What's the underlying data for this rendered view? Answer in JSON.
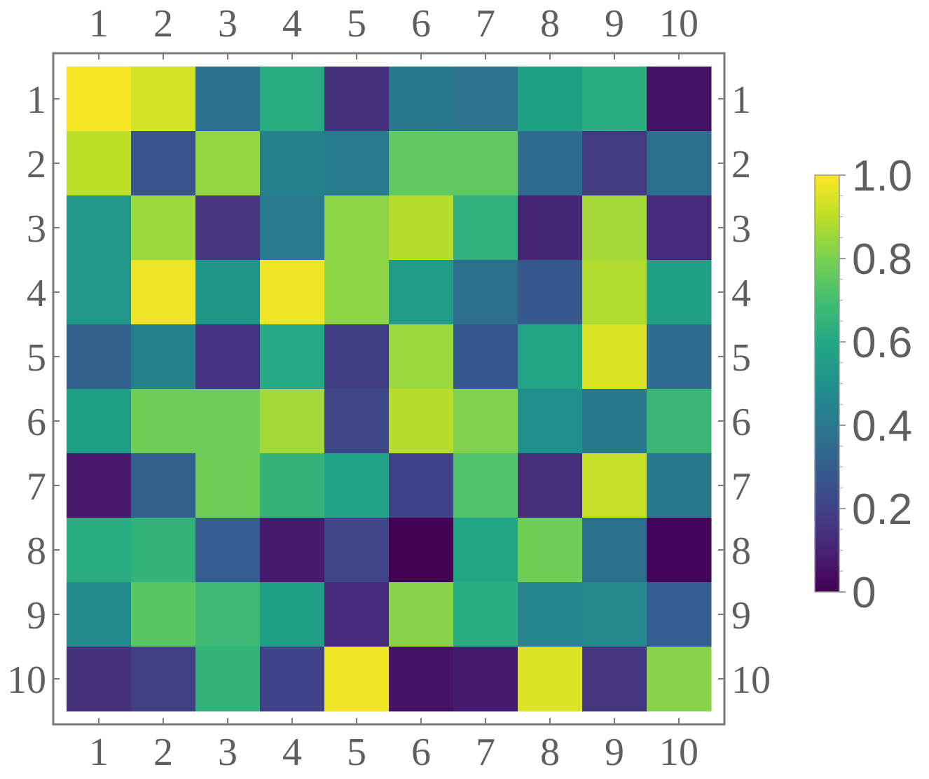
{
  "chart_data": {
    "type": "heatmap",
    "title": "",
    "xlabel": "",
    "ylabel": "",
    "x_ticks": [
      "1",
      "2",
      "3",
      "4",
      "5",
      "6",
      "7",
      "8",
      "9",
      "10"
    ],
    "y_ticks": [
      "1",
      "2",
      "3",
      "4",
      "5",
      "6",
      "7",
      "8",
      "9",
      "10"
    ],
    "colorscale": "viridis",
    "colorbar": {
      "range": [
        0,
        1
      ],
      "tick_labels": [
        "0",
        "0.2",
        "0.4",
        "0.6",
        "0.8",
        "1.0"
      ],
      "tick_values": [
        0,
        0.2,
        0.4,
        0.6,
        0.8,
        1.0
      ]
    },
    "values": [
      [
        0.99,
        0.93,
        0.37,
        0.62,
        0.14,
        0.4,
        0.38,
        0.57,
        0.62,
        0.05
      ],
      [
        0.9,
        0.26,
        0.84,
        0.44,
        0.41,
        0.75,
        0.75,
        0.35,
        0.17,
        0.36
      ],
      [
        0.53,
        0.85,
        0.16,
        0.41,
        0.83,
        0.89,
        0.64,
        0.11,
        0.86,
        0.12
      ],
      [
        0.53,
        0.98,
        0.52,
        0.98,
        0.83,
        0.55,
        0.36,
        0.28,
        0.88,
        0.57
      ],
      [
        0.31,
        0.44,
        0.15,
        0.61,
        0.18,
        0.85,
        0.28,
        0.59,
        0.95,
        0.35
      ],
      [
        0.56,
        0.78,
        0.78,
        0.86,
        0.22,
        0.89,
        0.81,
        0.5,
        0.4,
        0.67
      ],
      [
        0.07,
        0.31,
        0.78,
        0.65,
        0.58,
        0.2,
        0.72,
        0.13,
        0.91,
        0.4
      ],
      [
        0.62,
        0.65,
        0.3,
        0.08,
        0.21,
        0.0,
        0.6,
        0.78,
        0.37,
        0.01
      ],
      [
        0.48,
        0.74,
        0.68,
        0.56,
        0.12,
        0.82,
        0.62,
        0.45,
        0.47,
        0.3
      ],
      [
        0.14,
        0.19,
        0.65,
        0.2,
        0.98,
        0.05,
        0.08,
        0.95,
        0.16,
        0.82
      ]
    ]
  }
}
